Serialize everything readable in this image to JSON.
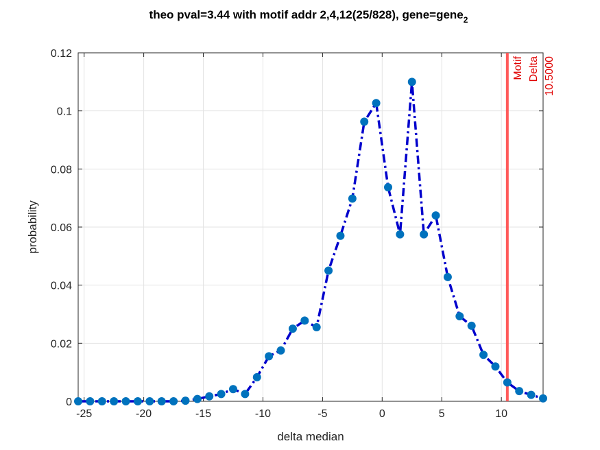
{
  "chart_data": {
    "type": "line",
    "title": "theo pval=3.44 with motif addr 2,4,12(25/828), gene=gene",
    "title_subscript": "2",
    "xlabel": "delta median",
    "ylabel": "probability",
    "xlim": [
      -25.5,
      13.5
    ],
    "ylim": [
      0,
      0.12
    ],
    "x_ticks": [
      -25,
      -20,
      -15,
      -10,
      -5,
      0,
      5,
      10
    ],
    "x_tick_labels": [
      "-25",
      "-20",
      "-15",
      "-10",
      "-5",
      "0",
      "5",
      "10"
    ],
    "y_ticks": [
      0,
      0.02,
      0.04,
      0.06,
      0.08,
      0.1,
      0.12
    ],
    "y_tick_labels": [
      "0",
      "0.02",
      "0.04",
      "0.06",
      "0.08",
      "0.1",
      "0.12"
    ],
    "grid": true,
    "series": [
      {
        "x": [
          -25.5,
          -24.5,
          -23.5,
          -22.5,
          -21.5,
          -20.5,
          -19.5,
          -18.5,
          -17.5,
          -16.5,
          -15.5,
          -14.5,
          -13.5,
          -12.5,
          -11.5,
          -10.5,
          -9.5,
          -8.5,
          -7.5,
          -6.5,
          -5.5,
          -4.5,
          -3.5,
          -2.5,
          -1.5,
          -0.5,
          0.5,
          1.5,
          2.5,
          3.5,
          4.5,
          5.5,
          6.5,
          7.5,
          8.5,
          9.5,
          10.5,
          11.5,
          12.5,
          13.5
        ],
        "values": [
          0,
          0,
          0,
          0,
          0,
          0,
          0,
          0,
          0,
          0.0002,
          0.0008,
          0.0017,
          0.0025,
          0.0042,
          0.0025,
          0.0083,
          0.0155,
          0.0175,
          0.025,
          0.0278,
          0.0255,
          0.045,
          0.057,
          0.0698,
          0.0963,
          0.1027,
          0.0737,
          0.0575,
          0.11,
          0.0575,
          0.064,
          0.0428,
          0.0293,
          0.026,
          0.016,
          0.012,
          0.0065,
          0.0035,
          0.0022,
          0.001
        ],
        "line_color": "#0000cc",
        "marker_color": "#0072bd",
        "line_style": "dash-dot"
      }
    ],
    "vline": {
      "x": 10.5,
      "color": "#ff5a5a",
      "label_lines": [
        "Motif",
        "Delta",
        "10.5000"
      ],
      "label_color": "#e00000"
    }
  }
}
